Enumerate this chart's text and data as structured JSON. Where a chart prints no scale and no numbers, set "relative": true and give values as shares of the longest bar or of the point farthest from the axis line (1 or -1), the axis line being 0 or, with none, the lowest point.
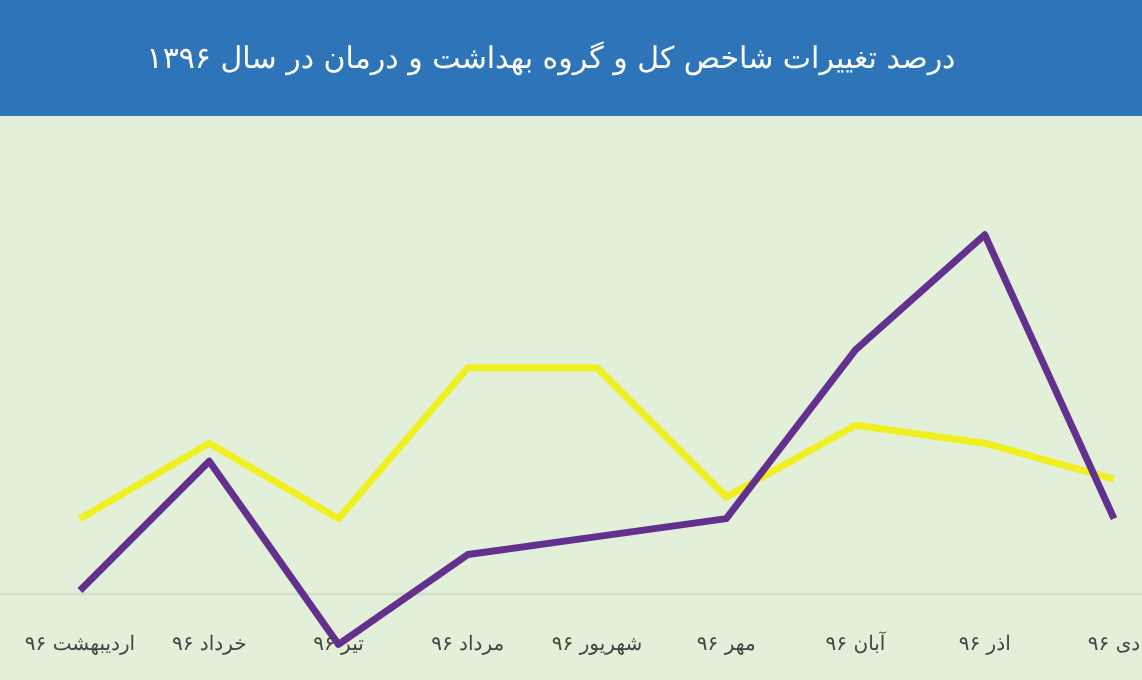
{
  "chart_data": {
    "type": "line",
    "title": "درصد تغییرات شاخص کل و گروه بهداشت و درمان در سال ۱۳۹۶",
    "relative": true,
    "categories": [
      "اردیبهشت ۹۶",
      "خرداد ۹۶",
      "تیر ۹۶",
      "مرداد ۹۶",
      "شهریور ۹۶",
      "مهر ۹۶",
      "آبان ۹۶",
      "اذر ۹۶",
      "دی ۹۶"
    ],
    "marker": "none",
    "line_style": "solid",
    "series": [
      {
        "color": "#f0f020",
        "values": [
          0.21,
          0.42,
          0.21,
          0.63,
          0.63,
          0.27,
          0.47,
          0.42,
          0.32
        ]
      },
      {
        "color": "#64308e",
        "values": [
          0.01,
          0.37,
          -0.14,
          0.11,
          0.16,
          0.21,
          0.68,
          1,
          0.21
        ]
      }
    ]
  }
}
